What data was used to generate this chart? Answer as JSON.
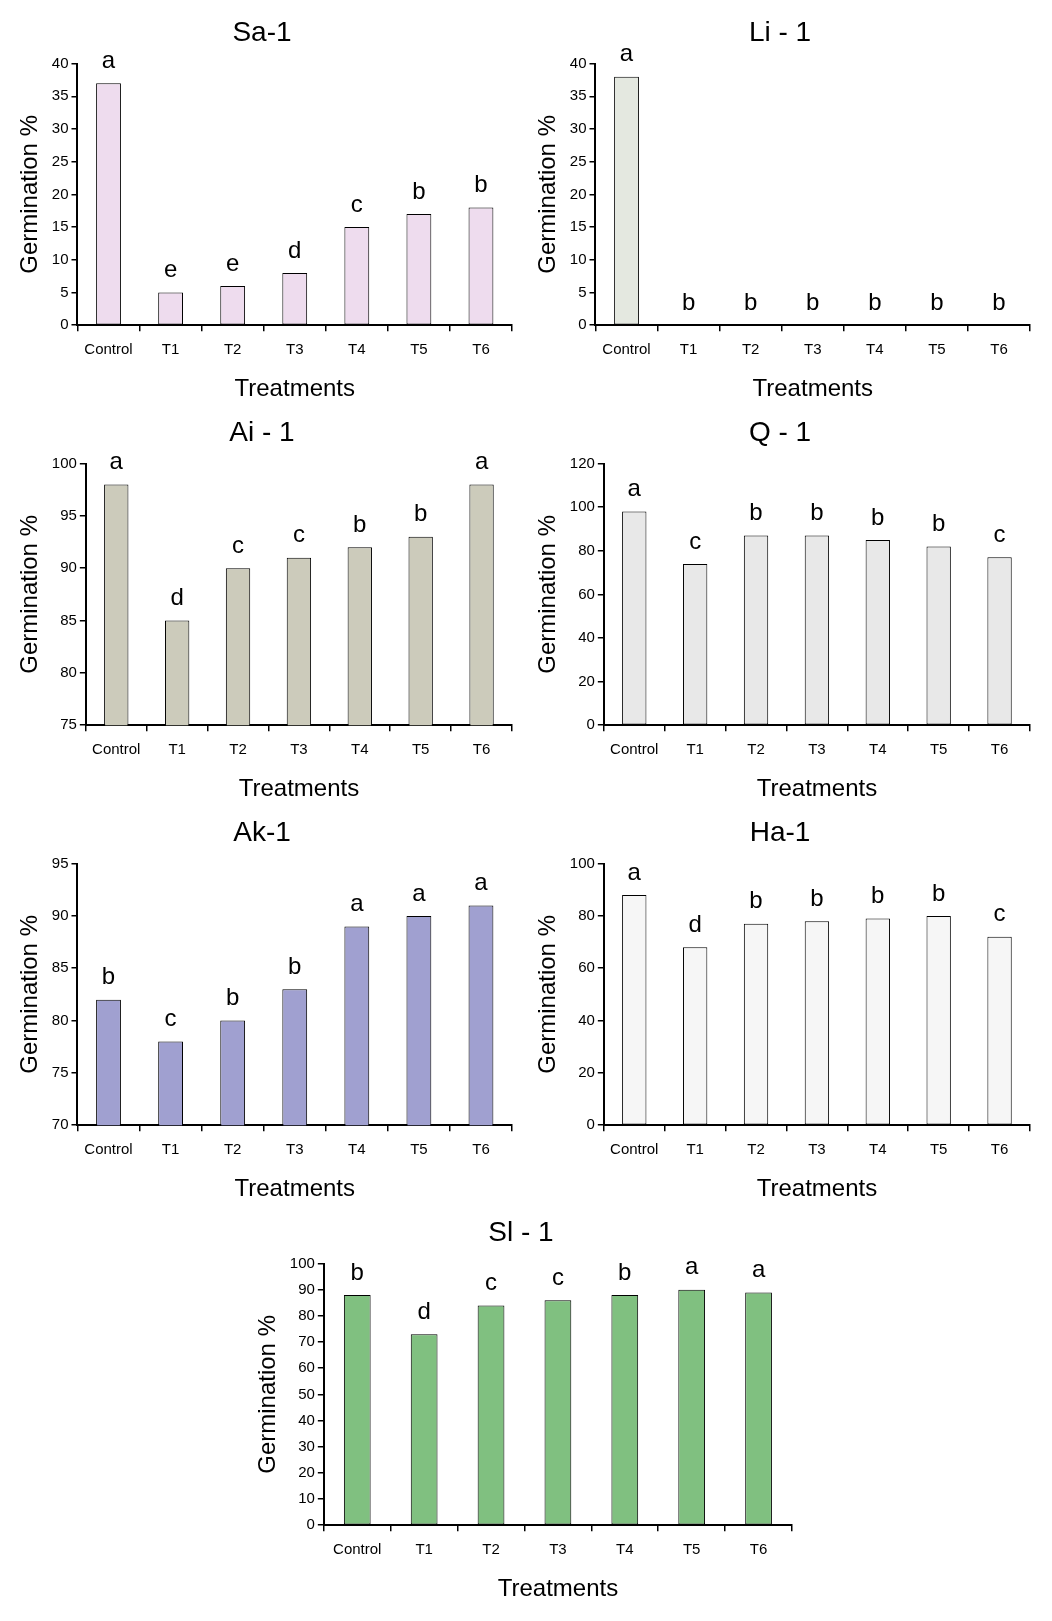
{
  "chart_data": [
    {
      "type": "bar",
      "title": "Sa-1",
      "xlabel": "Treatments",
      "ylabel": "Germination %",
      "categories": [
        "Control",
        "T1",
        "T2",
        "T3",
        "T4",
        "T5",
        "T6"
      ],
      "values": [
        37,
        5,
        6,
        8,
        15,
        17,
        18
      ],
      "color": "#eedcee",
      "ylim": [
        0,
        40
      ],
      "yticks": [
        0,
        5,
        10,
        15,
        20,
        25,
        30,
        35,
        40
      ],
      "grid": false,
      "legend": false,
      "annotations": [
        {
          "text": "a",
          "x": "Control",
          "y": 37
        },
        {
          "text": "e",
          "x": "T1",
          "y": 5
        },
        {
          "text": "e",
          "x": "T2",
          "y": 6
        },
        {
          "text": "d",
          "x": "T3",
          "y": 8
        },
        {
          "text": "c",
          "x": "T4",
          "y": 15
        },
        {
          "text": "b",
          "x": "T5",
          "y": 17
        },
        {
          "text": "b",
          "x": "T6",
          "y": 18
        }
      ]
    },
    {
      "type": "bar",
      "title": "Li - 1",
      "xlabel": "Treatments",
      "ylabel": "Germination %",
      "categories": [
        "Control",
        "T1",
        "T2",
        "T3",
        "T4",
        "T5",
        "T6"
      ],
      "values": [
        38,
        0,
        0,
        0,
        0,
        0,
        0
      ],
      "color": "#e4e8e0",
      "ylim": [
        0,
        40
      ],
      "yticks": [
        0,
        5,
        10,
        15,
        20,
        25,
        30,
        35,
        40
      ],
      "grid": false,
      "legend": false,
      "annotations": [
        {
          "text": "a",
          "x": "Control",
          "y": 38
        },
        {
          "text": "b",
          "x": "T1",
          "y": 0
        },
        {
          "text": "b",
          "x": "T2",
          "y": 0
        },
        {
          "text": "b",
          "x": "T3",
          "y": 0
        },
        {
          "text": "b",
          "x": "T4",
          "y": 0
        },
        {
          "text": "b",
          "x": "T5",
          "y": 0
        },
        {
          "text": "b",
          "x": "T6",
          "y": 0
        }
      ]
    },
    {
      "type": "bar",
      "title": "Ai - 1",
      "xlabel": "Treatments",
      "ylabel": "Germination %",
      "categories": [
        "Control",
        "T1",
        "T2",
        "T3",
        "T4",
        "T5",
        "T6"
      ],
      "values": [
        98,
        85,
        90,
        91,
        92,
        93,
        98
      ],
      "color": "#cccbbb",
      "ylim": [
        75,
        100
      ],
      "yticks": [
        75,
        80,
        85,
        90,
        95,
        100
      ],
      "grid": false,
      "legend": false,
      "annotations": [
        {
          "text": "a",
          "x": "Control",
          "y": 98
        },
        {
          "text": "d",
          "x": "T1",
          "y": 85
        },
        {
          "text": "c",
          "x": "T2",
          "y": 90
        },
        {
          "text": "c",
          "x": "T3",
          "y": 91
        },
        {
          "text": "b",
          "x": "T4",
          "y": 92
        },
        {
          "text": "b",
          "x": "T5",
          "y": 93
        },
        {
          "text": "a",
          "x": "T6",
          "y": 98
        }
      ]
    },
    {
      "type": "bar",
      "title": "Q - 1",
      "xlabel": "Treatments",
      "ylabel": "Germination %",
      "categories": [
        "Control",
        "T1",
        "T2",
        "T3",
        "T4",
        "T5",
        "T6"
      ],
      "values": [
        98,
        74,
        87,
        87,
        85,
        82,
        77
      ],
      "color": "#e8e8e8",
      "ylim": [
        0,
        120
      ],
      "yticks": [
        0,
        20,
        40,
        60,
        80,
        100,
        120
      ],
      "grid": false,
      "legend": false,
      "annotations": [
        {
          "text": "a",
          "x": "Control",
          "y": 98
        },
        {
          "text": "c",
          "x": "T1",
          "y": 74
        },
        {
          "text": "b",
          "x": "T2",
          "y": 87
        },
        {
          "text": "b",
          "x": "T3",
          "y": 87
        },
        {
          "text": "b",
          "x": "T4",
          "y": 85
        },
        {
          "text": "b",
          "x": "T5",
          "y": 82
        },
        {
          "text": "c",
          "x": "T6",
          "y": 77
        }
      ]
    },
    {
      "type": "bar",
      "title": "Ak-1",
      "xlabel": "Treatments",
      "ylabel": "Germination %",
      "categories": [
        "Control",
        "T1",
        "T2",
        "T3",
        "T4",
        "T5",
        "T6"
      ],
      "values": [
        82,
        78,
        80,
        83,
        89,
        90,
        91
      ],
      "color": "#a0a0d0",
      "ylim": [
        70,
        95
      ],
      "yticks": [
        70,
        75,
        80,
        85,
        90,
        95
      ],
      "grid": false,
      "legend": false,
      "annotations": [
        {
          "text": "b",
          "x": "Control",
          "y": 82
        },
        {
          "text": "c",
          "x": "T1",
          "y": 78
        },
        {
          "text": "b",
          "x": "T2",
          "y": 80
        },
        {
          "text": "b",
          "x": "T3",
          "y": 83
        },
        {
          "text": "a",
          "x": "T4",
          "y": 89
        },
        {
          "text": "a",
          "x": "T5",
          "y": 90
        },
        {
          "text": "a",
          "x": "T6",
          "y": 91
        }
      ]
    },
    {
      "type": "bar",
      "title": "Ha-1",
      "xlabel": "Treatments",
      "ylabel": "Germination %",
      "categories": [
        "Control",
        "T1",
        "T2",
        "T3",
        "T4",
        "T5",
        "T6"
      ],
      "values": [
        88,
        68,
        77,
        78,
        79,
        80,
        72
      ],
      "color": "#f6f6f6",
      "ylim": [
        0,
        100
      ],
      "yticks": [
        0,
        20,
        40,
        60,
        80,
        100
      ],
      "grid": false,
      "legend": false,
      "annotations": [
        {
          "text": "a",
          "x": "Control",
          "y": 88
        },
        {
          "text": "d",
          "x": "T1",
          "y": 68
        },
        {
          "text": "b",
          "x": "T2",
          "y": 77
        },
        {
          "text": "b",
          "x": "T3",
          "y": 78
        },
        {
          "text": "b",
          "x": "T4",
          "y": 79
        },
        {
          "text": "b",
          "x": "T5",
          "y": 80
        },
        {
          "text": "c",
          "x": "T6",
          "y": 72
        }
      ]
    },
    {
      "type": "bar",
      "title": "Sl - 1",
      "xlabel": "Treatments",
      "ylabel": "Germination %",
      "categories": [
        "Control",
        "T1",
        "T2",
        "T3",
        "T4",
        "T5",
        "T6"
      ],
      "values": [
        88,
        73,
        84,
        86,
        88,
        90,
        89
      ],
      "color": "#80c080",
      "ylim": [
        0,
        100
      ],
      "yticks": [
        0,
        10,
        20,
        30,
        40,
        50,
        60,
        70,
        80,
        90,
        100
      ],
      "grid": false,
      "legend": false,
      "annotations": [
        {
          "text": "b",
          "x": "Control",
          "y": 88
        },
        {
          "text": "d",
          "x": "T1",
          "y": 73
        },
        {
          "text": "c",
          "x": "T2",
          "y": 84
        },
        {
          "text": "c",
          "x": "T3",
          "y": 86
        },
        {
          "text": "b",
          "x": "T4",
          "y": 88
        },
        {
          "text": "a",
          "x": "T5",
          "y": 90
        },
        {
          "text": "a",
          "x": "T6",
          "y": 89
        }
      ]
    }
  ]
}
